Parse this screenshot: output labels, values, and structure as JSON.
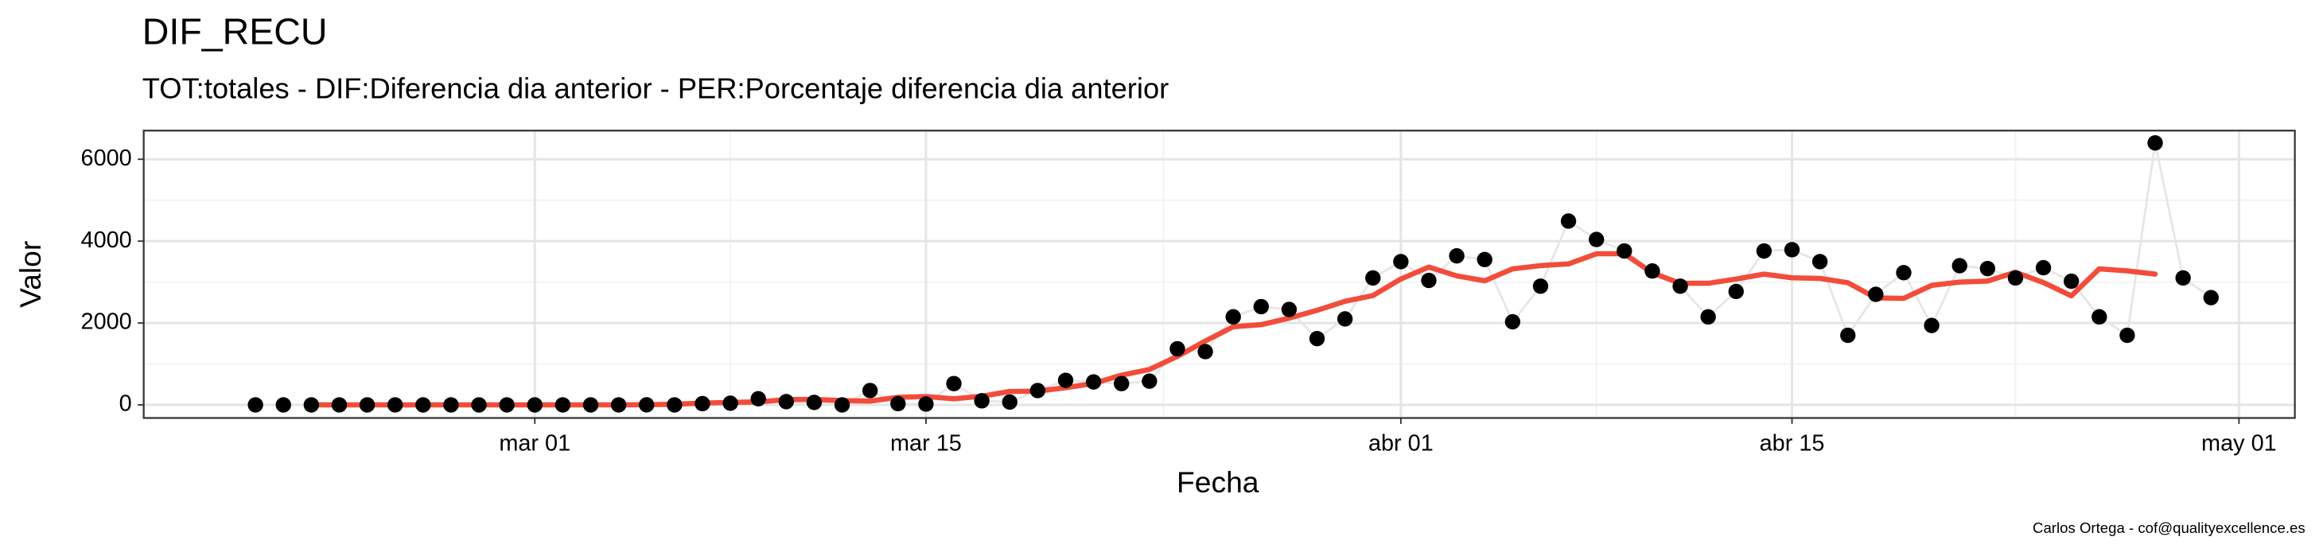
{
  "chart_data": {
    "type": "line",
    "title": "DIF_RECU",
    "subtitle": "TOT:totales - DIF:Diferencia dia anterior - PER:Porcentaje diferencia dia anterior",
    "x_label": "Fecha",
    "y_label": "Valor",
    "caption": "Carlos Ortega - cof@qualityexcellence.es",
    "x": [
      "02-20",
      "02-21",
      "02-22",
      "02-23",
      "02-24",
      "02-25",
      "02-26",
      "02-27",
      "02-28",
      "02-29",
      "03-01",
      "03-02",
      "03-03",
      "03-04",
      "03-05",
      "03-06",
      "03-07",
      "03-08",
      "03-09",
      "03-10",
      "03-11",
      "03-12",
      "03-13",
      "03-14",
      "03-15",
      "03-16",
      "03-17",
      "03-18",
      "03-19",
      "03-20",
      "03-21",
      "03-22",
      "03-23",
      "03-24",
      "03-25",
      "03-26",
      "03-27",
      "03-28",
      "03-29",
      "03-30",
      "03-31",
      "04-01",
      "04-02",
      "04-03",
      "04-04",
      "04-05",
      "04-06",
      "04-07",
      "04-08",
      "04-09",
      "04-10",
      "04-11",
      "04-12",
      "04-13",
      "04-14",
      "04-15",
      "04-16",
      "04-17",
      "04-18",
      "04-19",
      "04-20",
      "04-21",
      "04-22",
      "04-23",
      "04-24",
      "04-25",
      "04-26",
      "04-27",
      "04-28",
      "04-29",
      "04-30"
    ],
    "series": [
      {
        "style": "points",
        "color": "#000000",
        "line_color": "#e6e6e6",
        "values": [
          0,
          0,
          0,
          0,
          0,
          0,
          0,
          0,
          0,
          0,
          0,
          0,
          0,
          0,
          2,
          0,
          30,
          40,
          150,
          80,
          60,
          0,
          350,
          30,
          20,
          520,
          100,
          70,
          350,
          600,
          560,
          520,
          580,
          1370,
          1300,
          2150,
          2400,
          2330,
          1620,
          2100,
          3100,
          3500,
          3040,
          3640,
          3550,
          2030,
          2900,
          4490,
          4040,
          3760,
          3270,
          2900,
          2150,
          2770,
          3760,
          3790,
          3500,
          1700,
          2700,
          3230,
          1940,
          3400,
          3330,
          3100,
          3350,
          3020,
          2150,
          1700,
          6400,
          3100,
          2620
        ]
      },
      {
        "style": "line",
        "color": "#f24c3a",
        "values": [
          null,
          null,
          0,
          0,
          0,
          0,
          0,
          0,
          0,
          0,
          0,
          0,
          0,
          0,
          6,
          14,
          44,
          60,
          72,
          128,
          134,
          104,
          92,
          184,
          204,
          148,
          212,
          328,
          336,
          420,
          522,
          726,
          866,
          1184,
          1560,
          1910,
          1960,
          2120,
          2310,
          2530,
          2672,
          3076,
          3366,
          3152,
          3032,
          3322,
          3402,
          3444,
          3692,
          3692,
          3224,
          2970,
          2970,
          3074,
          3194,
          3104,
          3090,
          2984,
          2614,
          2602,
          2920,
          3000,
          3024,
          3240,
          2990,
          2664,
          3324,
          3274,
          3194,
          null,
          null
        ]
      }
    ],
    "xlim": [
      "02-16",
      "05-03"
    ],
    "xticks": [
      {
        "value": "03-01",
        "label": "mar 01"
      },
      {
        "value": "03-15",
        "label": "mar 15"
      },
      {
        "value": "04-01",
        "label": "abr 01"
      },
      {
        "value": "04-15",
        "label": "abr 15"
      },
      {
        "value": "05-01",
        "label": "may 01"
      }
    ],
    "ylim": [
      -320,
      6700
    ],
    "yticks": [
      0,
      2000,
      4000,
      6000
    ],
    "grid": true
  }
}
